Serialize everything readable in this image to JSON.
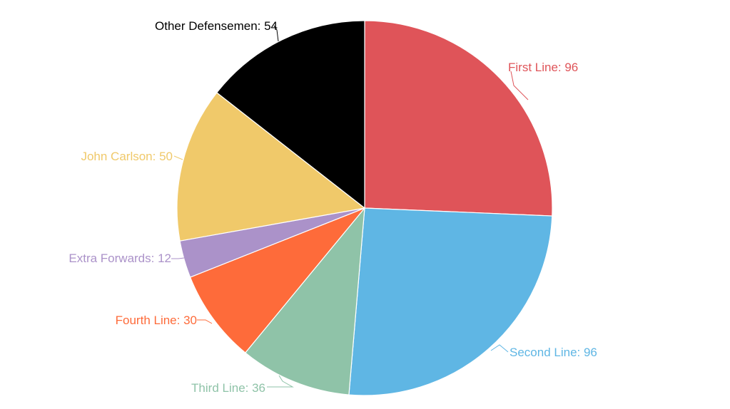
{
  "chart_data": {
    "type": "pie",
    "title": "",
    "start_angle_deg": 0,
    "direction": "clockwise",
    "slices": [
      {
        "label": "First Line",
        "value": 96,
        "color": "#df5459",
        "text": "First Line: 96"
      },
      {
        "label": "Second Line",
        "value": 96,
        "color": "#5fb6e4",
        "text": "Second Line: 96"
      },
      {
        "label": "Third Line",
        "value": 36,
        "color": "#8fc3a8",
        "text": "Third Line: 36"
      },
      {
        "label": "Fourth Line",
        "value": 30,
        "color": "#fe6b3a",
        "text": "Fourth Line: 30"
      },
      {
        "label": "Extra Forwards",
        "value": 12,
        "color": "#ab92c9",
        "text": "Extra Forwards: 12"
      },
      {
        "label": "John Carlson",
        "value": 50,
        "color": "#f0c96a",
        "text": "John Carlson: 50"
      },
      {
        "label": "Other Defensemen",
        "value": 54,
        "color": "#000000",
        "text": "Other Defensemen: 54"
      }
    ],
    "legend": "none"
  }
}
